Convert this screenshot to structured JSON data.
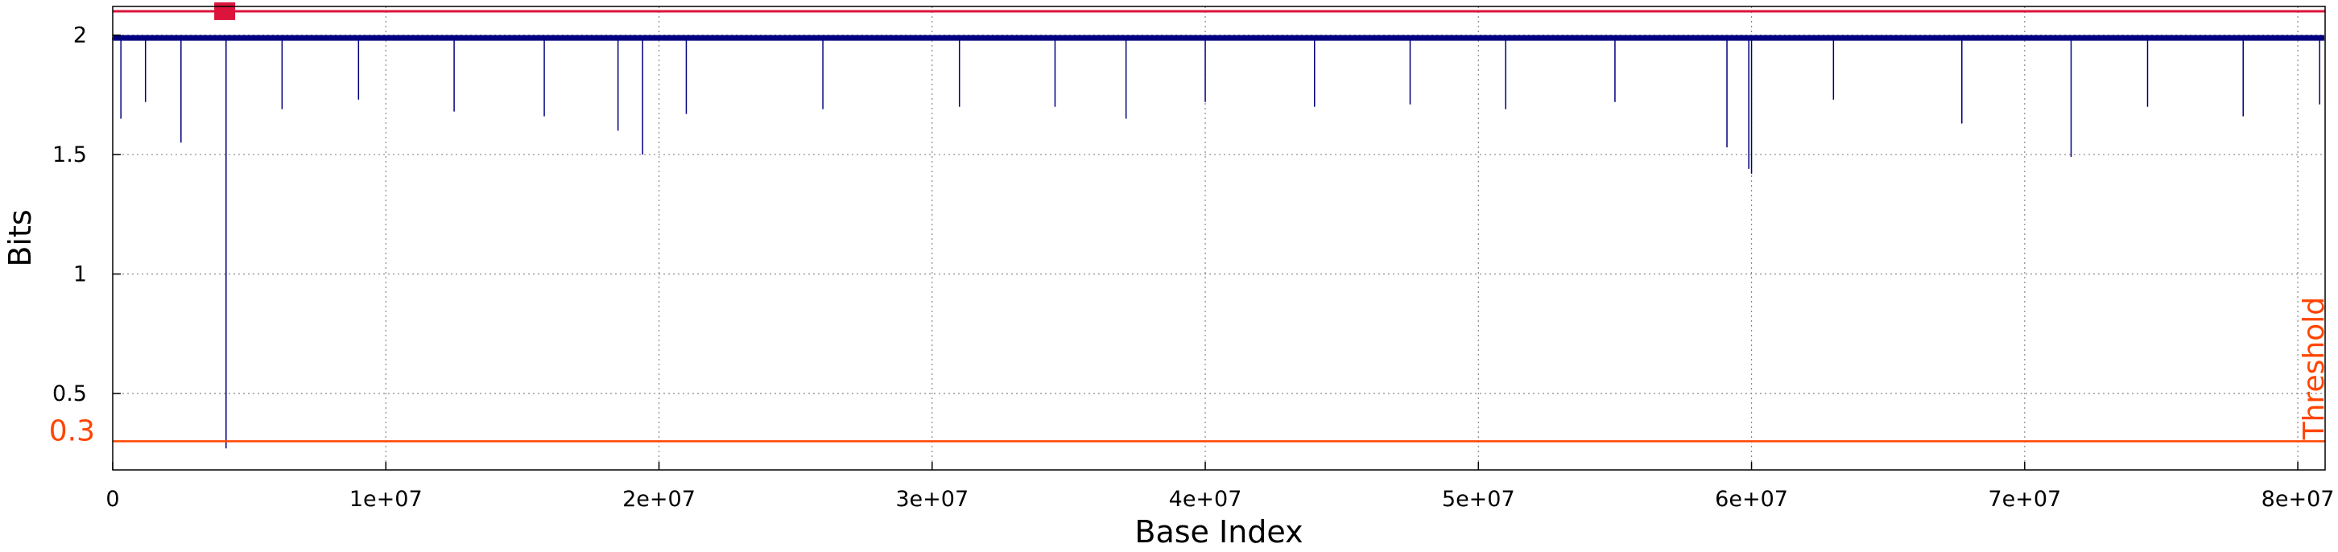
{
  "chart_data": {
    "type": "line",
    "title": "",
    "xlabel": "Base Index",
    "ylabel": "Bits",
    "xlim": [
      0,
      81000000
    ],
    "ylim": [
      0.18,
      2.12
    ],
    "grid": true,
    "x_ticks": [
      {
        "value": 0,
        "label": "0"
      },
      {
        "value": 10000000,
        "label": "1e+07"
      },
      {
        "value": 20000000,
        "label": "2e+07"
      },
      {
        "value": 30000000,
        "label": "3e+07"
      },
      {
        "value": 40000000,
        "label": "4e+07"
      },
      {
        "value": 50000000,
        "label": "5e+07"
      },
      {
        "value": 60000000,
        "label": "6e+07"
      },
      {
        "value": 70000000,
        "label": "7e+07"
      },
      {
        "value": 80000000,
        "label": "8e+07"
      }
    ],
    "y_ticks": [
      {
        "value": 2,
        "label": "2"
      },
      {
        "value": 1.5,
        "label": "1.5"
      },
      {
        "value": 1,
        "label": "1"
      },
      {
        "value": 0.5,
        "label": "0.5"
      }
    ],
    "series": [
      {
        "color": "#000080",
        "baseline": 1.99,
        "x": [
          0,
          300000,
          1200000,
          2500000,
          4100000,
          4150000,
          6200000,
          9000000,
          12500000,
          15800000,
          18500000,
          19400000,
          21000000,
          26000000,
          31000000,
          34500000,
          37100000,
          40000000,
          44000000,
          47500000,
          51000000,
          55000000,
          59100000,
          59900000,
          60000000,
          63000000,
          67700000,
          71700000,
          74500000,
          78000000,
          80800000,
          81000000
        ],
        "values": [
          1.98,
          1.65,
          1.72,
          1.55,
          1.99,
          0.27,
          1.69,
          1.73,
          1.68,
          1.66,
          1.6,
          1.5,
          1.67,
          1.69,
          1.7,
          1.7,
          1.65,
          1.72,
          1.7,
          1.71,
          1.69,
          1.72,
          1.53,
          1.44,
          1.42,
          1.73,
          1.63,
          1.49,
          1.7,
          1.66,
          1.71,
          1.99
        ]
      }
    ],
    "threshold": {
      "value": 0.3,
      "label": "0.3",
      "text": "Threshold",
      "color": "#ff4500"
    },
    "reference_line": {
      "value": 2.1,
      "color": "#dc143c"
    },
    "marker": {
      "x": 4100000,
      "y": 2.1,
      "color": "#dc143c"
    }
  }
}
